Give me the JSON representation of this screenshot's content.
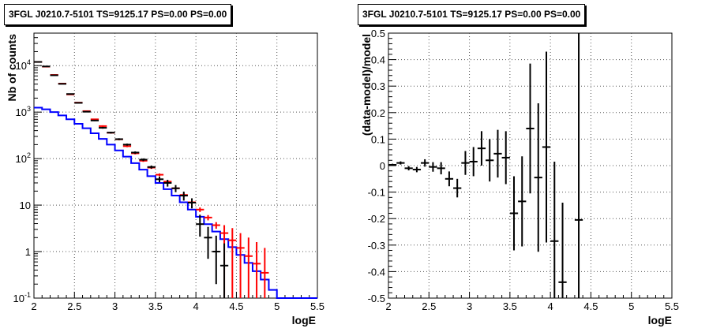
{
  "chart_data": [
    {
      "type": "step",
      "title": "3FGL J0210.7-5101 TS=9125.17 PS=0.00 PS=0.00",
      "xlabel": "logE",
      "ylabel": "Nb of counts",
      "xlim": [
        2,
        5.5
      ],
      "ylim": [
        0.1,
        50000
      ],
      "yscale": "log",
      "grid": true,
      "xticks": [
        "2",
        "2.5",
        "3",
        "3.5",
        "4",
        "4.5",
        "5",
        "5.5"
      ],
      "yticks": [
        {
          "v": 0.1,
          "base": "10",
          "exp": "-1"
        },
        {
          "v": 1,
          "base": "1",
          "exp": ""
        },
        {
          "v": 10,
          "base": "10",
          "exp": ""
        },
        {
          "v": 100,
          "base": "10",
          "exp": "2"
        },
        {
          "v": 1000,
          "base": "10",
          "exp": "3"
        },
        {
          "v": 10000,
          "base": "10",
          "exp": "4"
        }
      ],
      "bin_width": 0.1,
      "series": [
        {
          "name": "",
          "style": "step",
          "color": "#0000ff",
          "x": [
            2.0,
            2.1,
            2.2,
            2.3,
            2.4,
            2.5,
            2.6,
            2.7,
            2.8,
            2.9,
            3.0,
            3.1,
            3.2,
            3.3,
            3.4,
            3.5,
            3.6,
            3.7,
            3.8,
            3.9,
            4.0,
            4.1,
            4.2,
            4.3,
            4.4,
            4.5,
            4.6,
            4.7,
            4.8,
            4.9,
            5.0,
            5.1,
            5.2,
            5.3,
            5.4
          ],
          "y": [
            1250,
            1150,
            1000,
            850,
            700,
            560,
            450,
            350,
            265,
            200,
            150,
            110,
            80,
            58,
            42,
            30,
            22,
            16,
            11.5,
            8,
            5.6,
            3.9,
            2.7,
            1.85,
            1.25,
            0.85,
            0.57,
            0.38,
            0.25,
            0.15,
            0.1,
            0.1,
            0.1,
            0.1,
            0.1
          ]
        },
        {
          "name": "",
          "style": "errorbar",
          "color": "#ff0000",
          "x": [
            2.05,
            2.15,
            2.25,
            2.35,
            2.45,
            2.55,
            2.65,
            2.75,
            2.85,
            2.95,
            3.05,
            3.15,
            3.25,
            3.35,
            3.45,
            3.55,
            3.65,
            3.75,
            3.85,
            3.95,
            4.05,
            4.15,
            4.25,
            4.35,
            4.45,
            4.55,
            4.65,
            4.75,
            4.85
          ],
          "y": [
            12000,
            9500,
            6300,
            4100,
            2400,
            1600,
            1050,
            700,
            500,
            360,
            260,
            185,
            130,
            90,
            64,
            45,
            32,
            23,
            16.5,
            11.5,
            8,
            5.4,
            3.7,
            2.5,
            1.75,
            1.2,
            0.8,
            0.55,
            0.35
          ],
          "ylo": [
            11900,
            9400,
            6200,
            4000,
            2350,
            1560,
            1020,
            680,
            480,
            345,
            248,
            176,
            123,
            85,
            60,
            42,
            30,
            21,
            15,
            10.4,
            7.1,
            4.7,
            3.1,
            0.1,
            0.1,
            0.1,
            0.1,
            0.1,
            0.1
          ],
          "yhi": [
            12100,
            9600,
            6400,
            4200,
            2450,
            1640,
            1080,
            720,
            520,
            375,
            272,
            194,
            137,
            95,
            68,
            48,
            34,
            25,
            18,
            12.6,
            8.9,
            6.1,
            4.3,
            3.7,
            3.2,
            2.5,
            2.0,
            1.6,
            1.2
          ]
        },
        {
          "name": "",
          "style": "errorbar",
          "color": "#000000",
          "x": [
            2.05,
            2.15,
            2.25,
            2.35,
            2.45,
            2.55,
            2.65,
            2.75,
            2.85,
            2.95,
            3.05,
            3.15,
            3.25,
            3.35,
            3.45,
            3.55,
            3.65,
            3.75,
            3.85,
            3.95,
            4.05,
            4.15,
            4.25,
            4.35
          ],
          "y": [
            12000,
            9600,
            6200,
            4050,
            2450,
            1580,
            1020,
            660,
            460,
            362,
            262,
            200,
            135,
            95,
            66,
            36,
            30,
            23,
            16,
            11.3,
            3.9,
            2.0,
            1.0,
            0.5
          ],
          "ylo": [
            11900,
            9500,
            6100,
            3950,
            2400,
            1540,
            990,
            640,
            440,
            346,
            250,
            190,
            127,
            89,
            61,
            31,
            25,
            19,
            12.5,
            8.5,
            2.1,
            0.7,
            0.2,
            0.1
          ],
          "yhi": [
            12100,
            9700,
            6300,
            4150,
            2500,
            1620,
            1050,
            680,
            480,
            378,
            274,
            210,
            143,
            101,
            71,
            41,
            35,
            27,
            19.5,
            14,
            6.2,
            3.4,
            2.2,
            1.5
          ]
        }
      ]
    },
    {
      "type": "scatter",
      "title": "3FGL J0210.7-5101 TS=9125.17 PS=0.00 PS=0.00",
      "xlabel": "logE",
      "ylabel": "(data-model)/model",
      "xlim": [
        2,
        5.5
      ],
      "ylim": [
        -0.5,
        0.5
      ],
      "grid": true,
      "xticks": [
        "2",
        "2.5",
        "3",
        "3.5",
        "4",
        "4.5",
        "5",
        "5.5"
      ],
      "yticks": [
        "-0.5",
        "-0.4",
        "-0.3",
        "-0.2",
        "-0.1",
        "0",
        "0.1",
        "0.2",
        "0.3",
        "0.4",
        "0.5"
      ],
      "series": [
        {
          "name": "",
          "color": "#000000",
          "x": [
            2.05,
            2.15,
            2.25,
            2.35,
            2.45,
            2.55,
            2.65,
            2.75,
            2.85,
            2.95,
            3.05,
            3.15,
            3.25,
            3.35,
            3.45,
            3.55,
            3.65,
            3.75,
            3.85,
            3.95,
            4.05,
            4.15,
            4.35
          ],
          "y": [
            0.003,
            0.01,
            -0.01,
            -0.015,
            0.01,
            -0.005,
            -0.01,
            -0.05,
            -0.085,
            0.01,
            0.015,
            0.065,
            0.02,
            0.045,
            0.03,
            -0.18,
            -0.135,
            0.14,
            -0.045,
            0.07,
            -0.285,
            -0.44,
            -0.205
          ],
          "err": [
            0.004,
            0.006,
            0.008,
            0.01,
            0.014,
            0.018,
            0.023,
            0.028,
            0.035,
            0.045,
            0.055,
            0.065,
            0.08,
            0.09,
            0.1,
            0.14,
            0.17,
            0.245,
            0.28,
            0.36,
            0.3,
            0.3,
            0.72
          ]
        }
      ]
    }
  ]
}
